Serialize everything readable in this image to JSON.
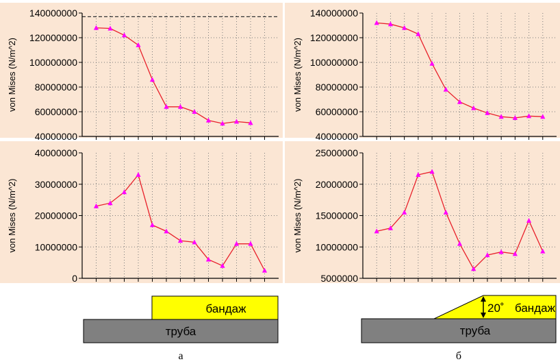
{
  "chart_data": [
    {
      "panel": "a-top",
      "type": "line",
      "ylabel": "von Mises (N/m^2)",
      "ylim": [
        40000000,
        140000000
      ],
      "y_ticks": [
        "40000000",
        "60000000",
        "80000000",
        "100000000",
        "120000000",
        "140000000"
      ],
      "x_categories": 12,
      "reference_line": 137000000,
      "grid": true,
      "series": [
        {
          "color": "#e8202a",
          "marker_color": "#ff00ff",
          "values": [
            128000000,
            127500000,
            122000000,
            114000000,
            86000000,
            64000000,
            64000000,
            60000000,
            53000000,
            50500000,
            52000000,
            51000000
          ]
        }
      ]
    },
    {
      "panel": "б-top",
      "type": "line",
      "ylabel": "von Mises (N/m^2)",
      "ylim": [
        40000000,
        140000000
      ],
      "y_ticks": [
        "40000000",
        "60000000",
        "80000000",
        "100000000",
        "120000000",
        "140000000"
      ],
      "grid": true,
      "series": [
        {
          "color": "#e8202a",
          "marker_color": "#ff00ff",
          "values": [
            132000000,
            131000000,
            128000000,
            123000000,
            99000000,
            78000000,
            68000000,
            63000000,
            59000000,
            56000000,
            55000000,
            56500000,
            56000000
          ]
        }
      ]
    },
    {
      "panel": "a-bottom",
      "type": "line",
      "ylabel": "von Mises (N/m^2)",
      "ylim": [
        0,
        40000000
      ],
      "y_ticks": [
        "0",
        "10000000",
        "20000000",
        "30000000",
        "40000000"
      ],
      "grid": true,
      "series": [
        {
          "color": "#e8202a",
          "marker_color": "#ff00ff",
          "values": [
            23000000,
            24000000,
            27500000,
            33000000,
            17000000,
            15000000,
            12000000,
            11500000,
            6000000,
            4000000,
            11000000,
            11000000,
            2500000
          ]
        }
      ]
    },
    {
      "panel": "б-bottom",
      "type": "line",
      "ylabel": "von Mises (N/m^2)",
      "ylim": [
        5000000,
        25000000
      ],
      "y_ticks": [
        "5000000",
        "10000000",
        "15000000",
        "20000000",
        "25000000"
      ],
      "grid": true,
      "series": [
        {
          "color": "#e8202a",
          "marker_color": "#ff00ff",
          "values": [
            12500000,
            13000000,
            15500000,
            21500000,
            22000000,
            15500000,
            10500000,
            6500000,
            8700000,
            9200000,
            8900000,
            14200000,
            9300000
          ]
        }
      ]
    }
  ],
  "diagram_a": {
    "top_label": "бандаж",
    "bottom_label": "труба",
    "caption": "а"
  },
  "diagram_b": {
    "angle_label": "20˚",
    "top_label": "бандаж",
    "bottom_label": "труба",
    "caption": "б"
  },
  "colors": {
    "plot_bg": "#fbe6d4",
    "grid": "#7a7a7a",
    "line": "#e8202a",
    "marker": "#ff00ff",
    "bandage": "#ffff00",
    "pipe": "#808080"
  }
}
